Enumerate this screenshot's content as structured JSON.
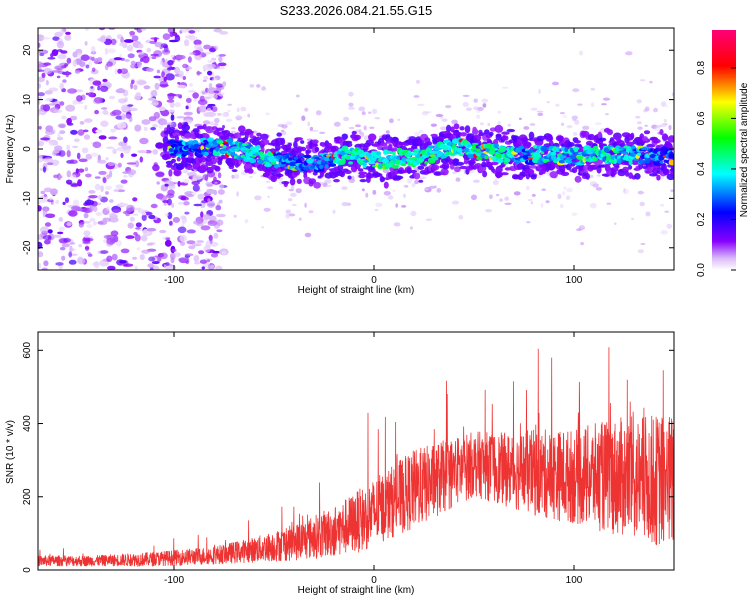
{
  "title": "S233.2026.084.21.55.G15",
  "chart_data": [
    {
      "type": "heatmap",
      "title": "S233.2026.084.21.55.G15",
      "xlabel": "Height of straight line (km)",
      "ylabel": "Frequency (Hz)",
      "xlim": [
        -168,
        150
      ],
      "ylim": [
        -24.5,
        24.5
      ],
      "xticks": [
        -100,
        0,
        100
      ],
      "yticks": [
        -20,
        -10,
        0,
        10,
        20
      ],
      "colorbar": {
        "label": "Normalized spectral amplitude",
        "range": [
          0.0,
          0.95
        ],
        "ticks": [
          0.0,
          0.2,
          0.4,
          0.6,
          0.8
        ],
        "tick_labels": [
          "0.0",
          "0.2",
          "0.4",
          "0.6",
          "0.8"
        ],
        "colormap": "rainbow (white-violet-blue-cyan-green-yellow-red-pink)"
      },
      "description_of_structure": {
        "ridge_center_hz": [
          [
            -100,
            0.0
          ],
          [
            -75,
            0.5
          ],
          [
            -60,
            -1.0
          ],
          [
            -45,
            -2.5
          ],
          [
            -30,
            -3.0
          ],
          [
            -15,
            -1.0
          ],
          [
            0,
            -2.5
          ],
          [
            10,
            -2.0
          ],
          [
            25,
            -1.5
          ],
          [
            40,
            0.5
          ],
          [
            55,
            -0.5
          ],
          [
            70,
            -1.5
          ],
          [
            85,
            -1.0
          ],
          [
            100,
            -1.5
          ],
          [
            120,
            -1.0
          ],
          [
            150,
            -1.5
          ]
        ],
        "noise_region_x_end_km": -80
      }
    },
    {
      "type": "line",
      "xlabel": "Height of straight line (km)",
      "ylabel": "SNR (10 * v/v)",
      "xlim": [
        -168,
        150
      ],
      "ylim": [
        0,
        650
      ],
      "xticks": [
        -100,
        0,
        100
      ],
      "yticks": [
        0,
        200,
        400,
        600
      ],
      "color": "#ee3333",
      "envelope_km_mean_spread": [
        [
          -168,
          25,
          15
        ],
        [
          -140,
          25,
          15
        ],
        [
          -110,
          30,
          20
        ],
        [
          -80,
          40,
          25
        ],
        [
          -60,
          55,
          35
        ],
        [
          -40,
          75,
          50
        ],
        [
          -20,
          105,
          70
        ],
        [
          -5,
          140,
          90
        ],
        [
          10,
          190,
          100
        ],
        [
          20,
          220,
          110
        ],
        [
          35,
          255,
          100
        ],
        [
          50,
          290,
          90
        ],
        [
          65,
          275,
          100
        ],
        [
          80,
          265,
          120
        ],
        [
          100,
          255,
          130
        ],
        [
          120,
          255,
          160
        ],
        [
          140,
          245,
          180
        ],
        [
          150,
          240,
          190
        ]
      ]
    }
  ]
}
